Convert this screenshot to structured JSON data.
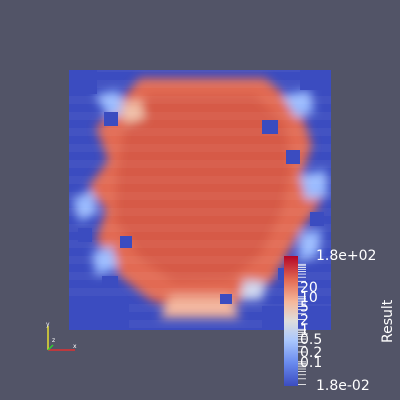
{
  "viewport": {
    "background": "#525467"
  },
  "colormap": {
    "title": "Result",
    "scale": "log",
    "range": [
      0.018,
      180
    ],
    "max_label": "1.8e+02",
    "min_label": "1.8e-02",
    "tick_labels": [
      "20",
      "10",
      "5",
      "2",
      "1",
      "0.5",
      "0.2",
      "0.1"
    ],
    "tick_values": [
      20,
      10,
      5,
      2,
      1,
      0.5,
      0.2,
      0.1
    ],
    "low_color": "#3b4cc0",
    "mid_color": "#dddddd",
    "high_color": "#b40426"
  },
  "orientation_axes": {
    "x_label": "x",
    "y_label": "y",
    "z_label": "z",
    "x_color": "#e03030",
    "y_color": "#e8e030",
    "z_color": "#30d030"
  }
}
